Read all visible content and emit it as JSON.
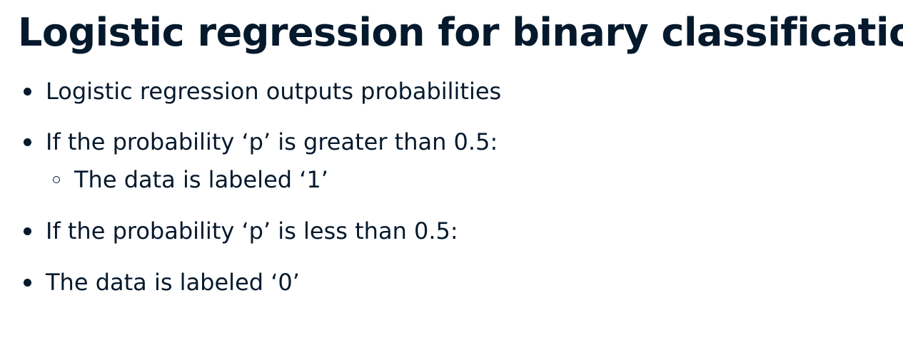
{
  "slide": {
    "title": "Logistic regression for binary classification",
    "bullets": [
      "Logistic regression outputs probabilities",
      "If the probability ‘p’ is greater than 0.5:",
      "If the probability ‘p’ is less than 0.5:",
      "The data is labeled ‘0’"
    ],
    "sub_bullets": [
      "The data is labeled ‘1’"
    ]
  }
}
